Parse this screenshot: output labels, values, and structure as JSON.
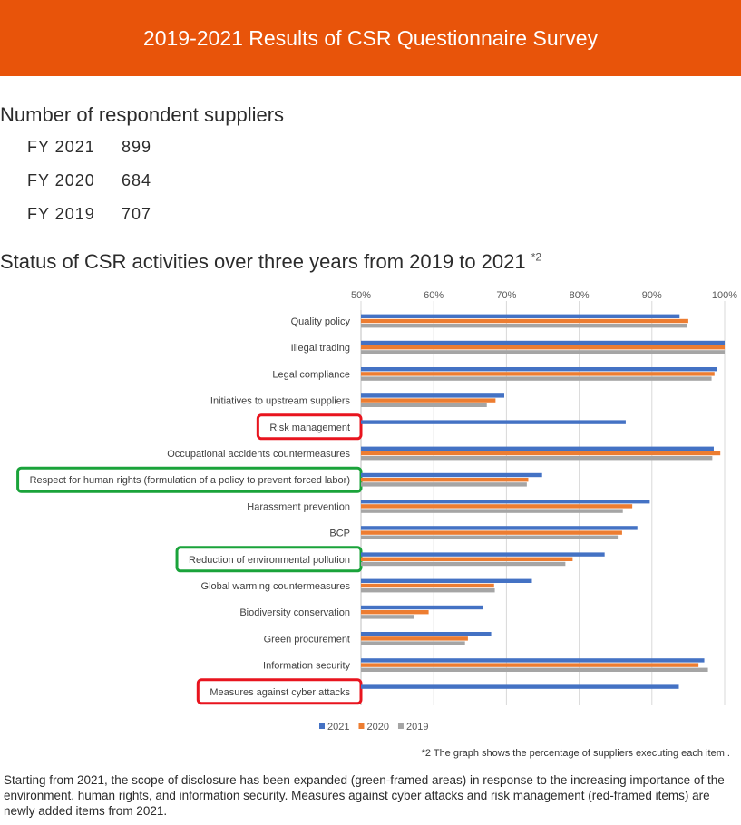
{
  "header": {
    "title": "2019-2021 Results of CSR Questionnaire Survey"
  },
  "respondents": {
    "title": "Number of respondent suppliers",
    "rows": [
      {
        "fy": "FY 2021",
        "count": "899"
      },
      {
        "fy": "FY 2020",
        "count": "684"
      },
      {
        "fy": "FY 2019",
        "count": "707"
      }
    ]
  },
  "status": {
    "title": "Status of CSR activities over three years from 2019 to 2021",
    "superscript": "*2"
  },
  "chart_data": {
    "type": "bar",
    "orientation": "horizontal",
    "xlim": [
      50,
      100
    ],
    "ticks": [
      "50%",
      "60%",
      "70%",
      "80%",
      "90%",
      "100%"
    ],
    "tick_values": [
      50,
      60,
      70,
      80,
      90,
      100
    ],
    "grid": true,
    "legend_position": "bottom",
    "categories": [
      "Quality policy",
      "Illegal trading",
      "Legal compliance",
      "Initiatives to upstream suppliers",
      "Risk management",
      "Occupational accidents countermeasures",
      "Respect for human rights (formulation of a policy to prevent forced labor)",
      "Harassment prevention",
      "BCP",
      "Reduction of environmental pollution",
      "Global warming countermeasures",
      "Biodiversity conservation",
      "Green procurement",
      "Information security",
      "Measures against cyber attacks"
    ],
    "highlights": [
      "none",
      "none",
      "none",
      "none",
      "red",
      "none",
      "green",
      "none",
      "none",
      "green",
      "none",
      "none",
      "none",
      "none",
      "red"
    ],
    "series": [
      {
        "name": "2021",
        "color": "#4472c4",
        "values": [
          93.8,
          100,
          99,
          69.7,
          86.4,
          98.5,
          74.9,
          89.7,
          88,
          83.5,
          73.5,
          66.8,
          67.9,
          97.2,
          93.7
        ]
      },
      {
        "name": "2020",
        "color": "#ed7d31",
        "values": [
          95,
          100,
          98.6,
          68.5,
          null,
          99.4,
          73,
          87.3,
          85.9,
          79.1,
          68.3,
          59.3,
          64.7,
          96.4,
          null
        ]
      },
      {
        "name": "2019",
        "color": "#a5a5a5",
        "values": [
          94.8,
          100,
          98.2,
          67.3,
          null,
          98.3,
          72.8,
          86,
          85.3,
          78.1,
          68.4,
          57.3,
          64.3,
          97.7,
          null
        ]
      }
    ]
  },
  "footnote": "*2 The graph shows the percentage of suppliers executing each item .",
  "note": "Starting from 2021, the scope of disclosure has been expanded (green-framed areas) in response to the increasing importance of the environment, human rights, and information security. Measures against cyber attacks and risk management (red-framed items) are newly added items from 2021."
}
